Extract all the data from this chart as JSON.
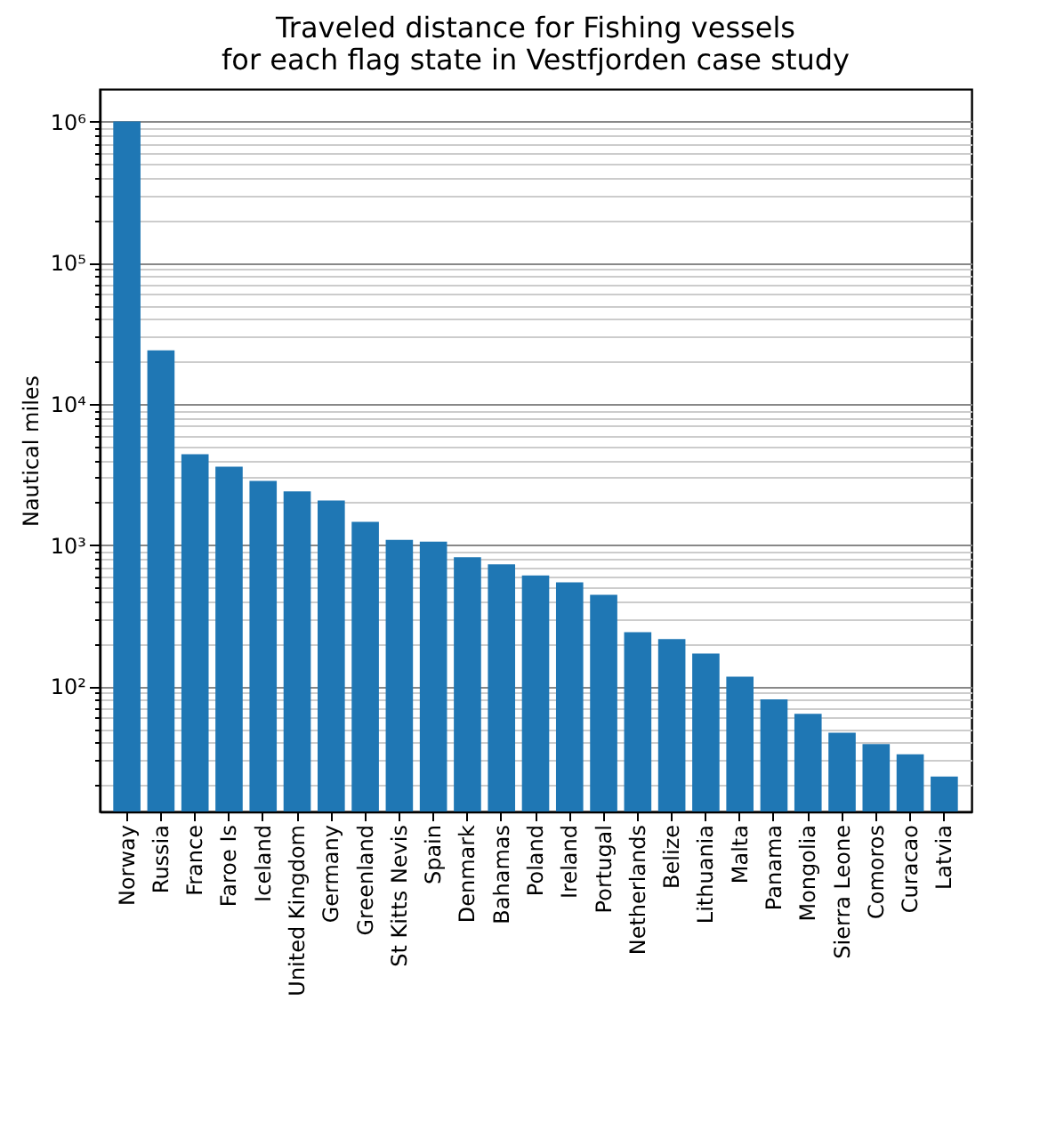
{
  "chart_data": {
    "type": "bar",
    "title": "Traveled distance for Fishing vessels\nfor each flag state in Vestfjorden case study",
    "ylabel": "Nautical miles",
    "categories": [
      "Norway",
      "Russia",
      "France",
      "Faroe Is",
      "Iceland",
      "United Kingdom",
      "Germany",
      "Greenland",
      "St Kitts Nevis",
      "Spain",
      "Denmark",
      "Bahamas",
      "Poland",
      "Ireland",
      "Portugal",
      "Netherlands",
      "Belize",
      "Lithuania",
      "Malta",
      "Panama",
      "Mongolia",
      "Sierra Leone",
      "Comoros",
      "Curacao",
      "Latvia"
    ],
    "values": [
      1000000,
      24000,
      4400,
      3600,
      2850,
      2400,
      2070,
      1460,
      1090,
      1060,
      820,
      730,
      611,
      545,
      445,
      242,
      216,
      171,
      117,
      81,
      64,
      47,
      39,
      33,
      23
    ],
    "color": "#1f77b4",
    "log": true,
    "grid": "y",
    "ylim": [
      13,
      1700000
    ],
    "yticks": [
      {
        "value": 20,
        "label": null
      },
      {
        "value": 30,
        "label": null
      },
      {
        "value": 40,
        "label": null
      },
      {
        "value": 50,
        "label": null
      },
      {
        "value": 60,
        "label": null
      },
      {
        "value": 70,
        "label": null
      },
      {
        "value": 80,
        "label": null
      },
      {
        "value": 90,
        "label": null
      },
      {
        "value": 100,
        "label": "10²"
      },
      {
        "value": 200,
        "label": null
      },
      {
        "value": 300,
        "label": null
      },
      {
        "value": 400,
        "label": null
      },
      {
        "value": 500,
        "label": null
      },
      {
        "value": 600,
        "label": null
      },
      {
        "value": 700,
        "label": null
      },
      {
        "value": 800,
        "label": null
      },
      {
        "value": 900,
        "label": null
      },
      {
        "value": 1000,
        "label": "10³"
      },
      {
        "value": 2000,
        "label": null
      },
      {
        "value": 3000,
        "label": null
      },
      {
        "value": 4000,
        "label": null
      },
      {
        "value": 5000,
        "label": null
      },
      {
        "value": 6000,
        "label": null
      },
      {
        "value": 7000,
        "label": null
      },
      {
        "value": 8000,
        "label": null
      },
      {
        "value": 9000,
        "label": null
      },
      {
        "value": 10000,
        "label": "10⁴"
      },
      {
        "value": 20000,
        "label": null
      },
      {
        "value": 30000,
        "label": null
      },
      {
        "value": 40000,
        "label": null
      },
      {
        "value": 50000,
        "label": null
      },
      {
        "value": 60000,
        "label": null
      },
      {
        "value": 70000,
        "label": null
      },
      {
        "value": 80000,
        "label": null
      },
      {
        "value": 90000,
        "label": null
      },
      {
        "value": 100000,
        "label": "10⁵"
      },
      {
        "value": 200000,
        "label": null
      },
      {
        "value": 300000,
        "label": null
      },
      {
        "value": 400000,
        "label": null
      },
      {
        "value": 500000,
        "label": null
      },
      {
        "value": 600000,
        "label": null
      },
      {
        "value": 700000,
        "label": null
      },
      {
        "value": 800000,
        "label": null
      },
      {
        "value": 900000,
        "label": null
      },
      {
        "value": 1000000,
        "label": "10⁶"
      }
    ]
  }
}
